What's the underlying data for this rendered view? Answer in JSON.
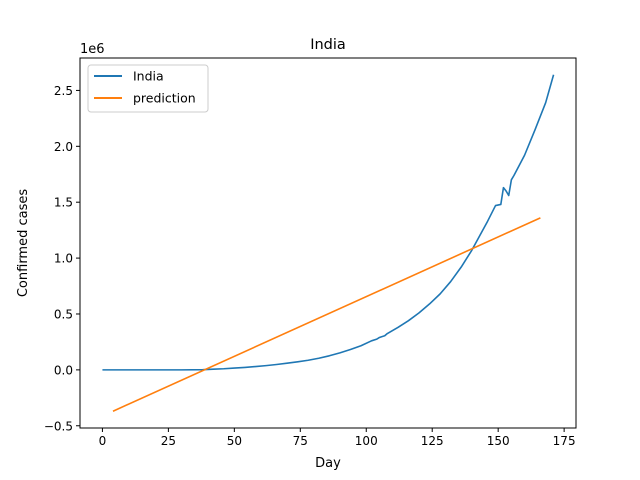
{
  "chart_data": {
    "type": "line",
    "title": "India",
    "xlabel": "Day",
    "ylabel": "Confirmed cases",
    "y_offset_label": "1e6",
    "xlim": [
      -8.5,
      179.5
    ],
    "ylim": [
      -0.52,
      2.79
    ],
    "xticks": [
      0,
      25,
      50,
      75,
      100,
      125,
      150,
      175
    ],
    "yticks": [
      -0.5,
      0.0,
      0.5,
      1.0,
      1.5,
      2.0,
      2.5
    ],
    "ytick_labels": [
      "−0.5",
      "0.0",
      "0.5",
      "1.0",
      "1.5",
      "2.0",
      "2.5"
    ],
    "grid": false,
    "legend_position": "top-left",
    "series": [
      {
        "name": "India",
        "color": "#1f77b4",
        "x": [
          0,
          10,
          20,
          30,
          38,
          42,
          46,
          50,
          54,
          58,
          62,
          66,
          70,
          74,
          78,
          82,
          86,
          90,
          94,
          98,
          102,
          104,
          105,
          107,
          108,
          112,
          116,
          120,
          124,
          128,
          132,
          136,
          140,
          143,
          146,
          149,
          151,
          152,
          153,
          154,
          155,
          156,
          160,
          164,
          168,
          171
        ],
        "y": [
          0,
          0,
          0,
          0,
          0.002,
          0.006,
          0.01,
          0.016,
          0.022,
          0.03,
          0.038,
          0.048,
          0.06,
          0.072,
          0.086,
          0.104,
          0.126,
          0.152,
          0.182,
          0.216,
          0.26,
          0.275,
          0.29,
          0.305,
          0.325,
          0.38,
          0.44,
          0.51,
          0.59,
          0.68,
          0.79,
          0.92,
          1.07,
          1.2,
          1.33,
          1.47,
          1.48,
          1.63,
          1.6,
          1.56,
          1.7,
          1.74,
          1.92,
          2.15,
          2.39,
          2.64
        ]
      },
      {
        "name": "prediction",
        "color": "#ff7f0e",
        "x": [
          4,
          166
        ],
        "y": [
          -0.37,
          1.36
        ]
      }
    ]
  }
}
